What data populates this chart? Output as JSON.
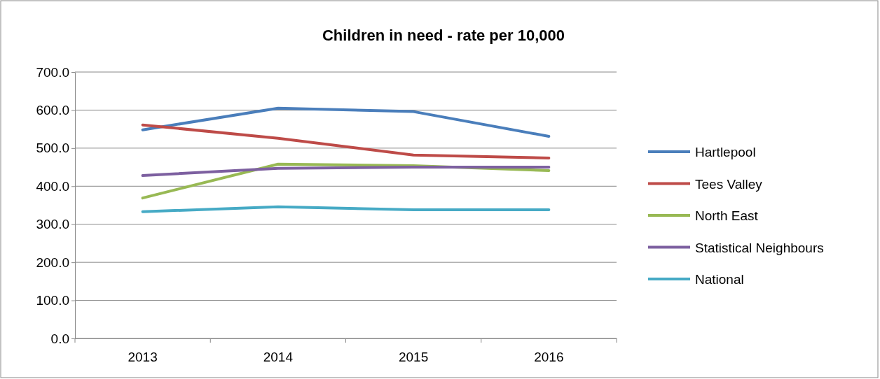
{
  "chart_data": {
    "type": "line",
    "title": "Children in need - rate per 10,000",
    "categories": [
      "2013",
      "2014",
      "2015",
      "2016"
    ],
    "series": [
      {
        "name": "Hartlepool",
        "color": "#4a7ebb",
        "values": [
          548,
          605,
          596,
          531
        ]
      },
      {
        "name": "Tees Valley",
        "color": "#be4b48",
        "values": [
          561,
          526,
          482,
          474
        ]
      },
      {
        "name": "North East",
        "color": "#98b954",
        "values": [
          369,
          458,
          454,
          441
        ]
      },
      {
        "name": "Statistical Neighbours",
        "color": "#7d60a0",
        "values": [
          428,
          447,
          450,
          450
        ]
      },
      {
        "name": "National",
        "color": "#46aac5",
        "values": [
          333,
          346,
          338,
          338
        ]
      }
    ],
    "ylim": [
      0,
      700
    ],
    "yticks": [
      {
        "value": 0,
        "label": "0.0"
      },
      {
        "value": 100,
        "label": "100.0"
      },
      {
        "value": 200,
        "label": "200.0"
      },
      {
        "value": 300,
        "label": "300.0"
      },
      {
        "value": 400,
        "label": "400.0"
      },
      {
        "value": 500,
        "label": "500.0"
      },
      {
        "value": 600,
        "label": "600.0"
      },
      {
        "value": 700,
        "label": "700.0"
      }
    ],
    "grid": "y",
    "legend": "right",
    "marker": "none",
    "line_style": "solid"
  }
}
